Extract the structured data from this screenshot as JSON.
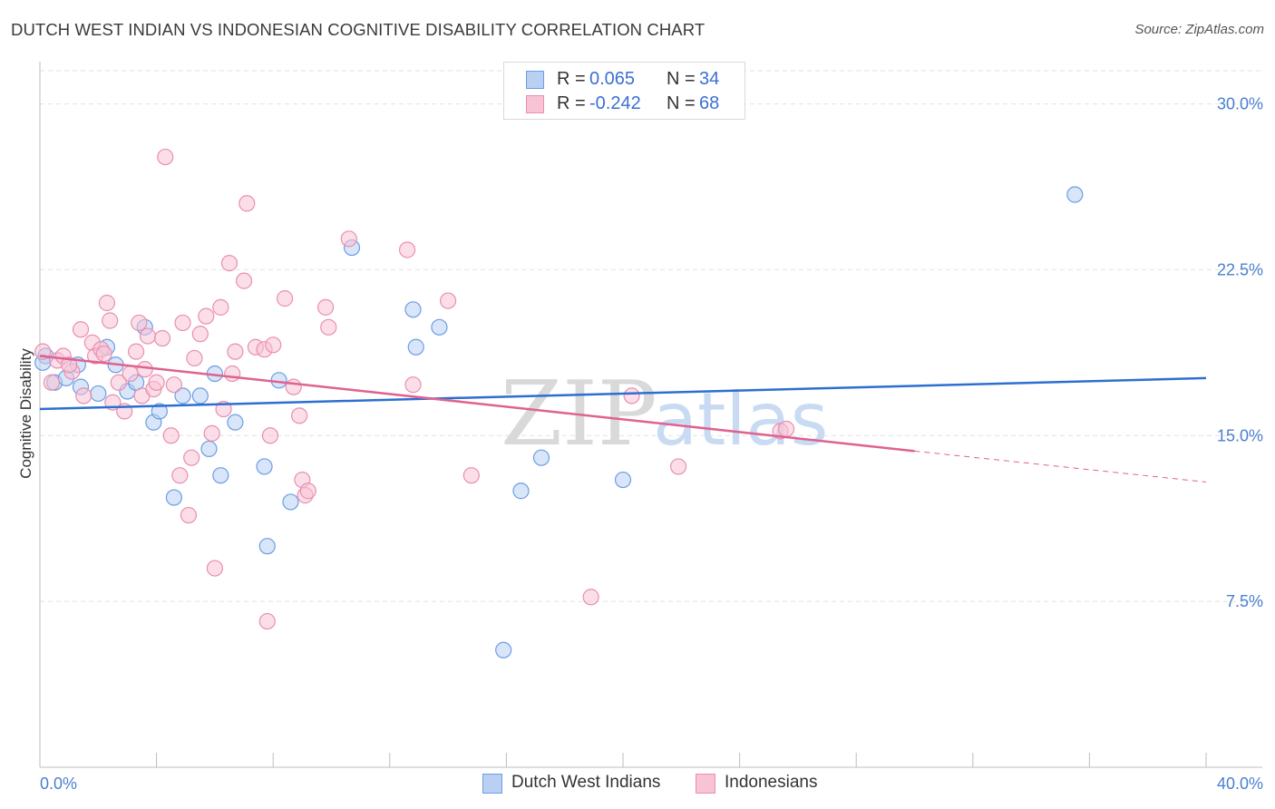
{
  "title": "DUTCH WEST INDIAN VS INDONESIAN COGNITIVE DISABILITY CORRELATION CHART",
  "source": "Source: ZipAtlas.com",
  "colors": {
    "blue": "#6a9ee6",
    "blue_fill": "#b9d0f3",
    "blue_line": "#2d6fd0",
    "pink": "#e98fb0",
    "pink_fill": "#f7c3d5",
    "pink_line": "#e0628f",
    "axis_text": "#4a7fd0",
    "grid": "#e2e2e2"
  },
  "legend": {
    "rows": [
      {
        "r_label": "R =",
        "r_value": "0.065",
        "n_label": "N =",
        "n_value": "34"
      },
      {
        "r_label": "R =",
        "r_value": "-0.242",
        "n_label": "N =",
        "n_value": "68"
      }
    ]
  },
  "bottom_legend": {
    "blue_label": "Dutch West Indians",
    "pink_label": "Indonesians"
  },
  "chart_data": {
    "type": "scatter",
    "title": "DUTCH WEST INDIAN VS INDONESIAN COGNITIVE DISABILITY CORRELATION CHART",
    "xlabel": "",
    "ylabel": "Cognitive Disability",
    "xlim": [
      0,
      40
    ],
    "ylim": [
      0,
      31.5
    ],
    "x_tick_labels": [
      "0.0%",
      "40.0%"
    ],
    "y_ticks": [
      7.5,
      15.0,
      22.5,
      30.0
    ],
    "y_tick_labels": [
      "7.5%",
      "15.0%",
      "22.5%",
      "30.0%"
    ],
    "grid": "horizontal dashed",
    "series": [
      {
        "name": "Dutch West Indians",
        "color": "#6a9ee6",
        "trend": {
          "x": [
            0,
            40
          ],
          "y": [
            16.2,
            17.6
          ]
        },
        "points": [
          [
            0.2,
            18.6
          ],
          [
            0.5,
            17.4
          ],
          [
            0.9,
            17.6
          ],
          [
            1.3,
            18.2
          ],
          [
            1.4,
            17.2
          ],
          [
            2.0,
            16.9
          ],
          [
            2.3,
            19.0
          ],
          [
            2.6,
            18.2
          ],
          [
            3.0,
            17.0
          ],
          [
            3.3,
            17.4
          ],
          [
            3.6,
            19.9
          ],
          [
            3.9,
            15.6
          ],
          [
            4.1,
            16.1
          ],
          [
            4.6,
            12.2
          ],
          [
            4.9,
            16.8
          ],
          [
            5.5,
            16.8
          ],
          [
            5.8,
            14.4
          ],
          [
            6.0,
            17.8
          ],
          [
            6.2,
            13.2
          ],
          [
            6.7,
            15.6
          ],
          [
            7.7,
            13.6
          ],
          [
            7.8,
            10.0
          ],
          [
            8.2,
            17.5
          ],
          [
            8.6,
            12.0
          ],
          [
            10.7,
            23.5
          ],
          [
            12.8,
            20.7
          ],
          [
            12.9,
            19.0
          ],
          [
            13.7,
            19.9
          ],
          [
            15.9,
            5.3
          ],
          [
            16.5,
            12.5
          ],
          [
            17.2,
            14.0
          ],
          [
            20.0,
            13.0
          ],
          [
            35.5,
            25.9
          ],
          [
            0.1,
            18.3
          ]
        ]
      },
      {
        "name": "Indonesians",
        "color": "#e98fb0",
        "trend": {
          "x": [
            0,
            30
          ],
          "y": [
            18.6,
            14.3
          ]
        },
        "trend_dashed": {
          "x": [
            30,
            40
          ],
          "y": [
            14.3,
            12.9
          ]
        },
        "points": [
          [
            0.1,
            18.8
          ],
          [
            0.4,
            17.4
          ],
          [
            0.6,
            18.4
          ],
          [
            0.8,
            18.6
          ],
          [
            1.1,
            17.9
          ],
          [
            1.4,
            19.8
          ],
          [
            1.5,
            16.8
          ],
          [
            1.8,
            19.2
          ],
          [
            1.9,
            18.6
          ],
          [
            2.1,
            18.9
          ],
          [
            2.3,
            21.0
          ],
          [
            2.4,
            20.2
          ],
          [
            2.5,
            16.5
          ],
          [
            2.7,
            17.4
          ],
          [
            2.9,
            16.1
          ],
          [
            3.1,
            17.8
          ],
          [
            3.3,
            18.8
          ],
          [
            3.4,
            20.1
          ],
          [
            3.5,
            16.8
          ],
          [
            3.6,
            18.0
          ],
          [
            3.7,
            19.5
          ],
          [
            3.9,
            17.1
          ],
          [
            4.0,
            17.4
          ],
          [
            4.2,
            19.4
          ],
          [
            4.3,
            27.6
          ],
          [
            4.5,
            15.0
          ],
          [
            4.6,
            17.3
          ],
          [
            4.8,
            13.2
          ],
          [
            4.9,
            20.1
          ],
          [
            5.1,
            11.4
          ],
          [
            5.2,
            14.0
          ],
          [
            5.3,
            18.5
          ],
          [
            5.5,
            19.6
          ],
          [
            5.7,
            20.4
          ],
          [
            5.9,
            15.1
          ],
          [
            6.0,
            9.0
          ],
          [
            6.2,
            20.8
          ],
          [
            6.3,
            16.2
          ],
          [
            6.5,
            22.8
          ],
          [
            6.6,
            17.8
          ],
          [
            6.7,
            18.8
          ],
          [
            7.0,
            22.0
          ],
          [
            7.1,
            25.5
          ],
          [
            7.4,
            19.0
          ],
          [
            7.7,
            18.9
          ],
          [
            7.8,
            6.6
          ],
          [
            7.9,
            15.0
          ],
          [
            8.0,
            19.1
          ],
          [
            8.4,
            21.2
          ],
          [
            8.7,
            17.2
          ],
          [
            8.9,
            15.9
          ],
          [
            9.0,
            13.0
          ],
          [
            9.1,
            12.3
          ],
          [
            9.2,
            12.5
          ],
          [
            9.8,
            20.8
          ],
          [
            9.9,
            19.9
          ],
          [
            10.6,
            23.9
          ],
          [
            12.6,
            23.4
          ],
          [
            12.8,
            17.3
          ],
          [
            14.0,
            21.1
          ],
          [
            14.8,
            13.2
          ],
          [
            18.9,
            7.7
          ],
          [
            20.3,
            16.8
          ],
          [
            21.9,
            13.6
          ],
          [
            25.4,
            15.2
          ],
          [
            25.6,
            15.3
          ],
          [
            1.0,
            18.2
          ],
          [
            2.2,
            18.7
          ]
        ]
      }
    ]
  }
}
